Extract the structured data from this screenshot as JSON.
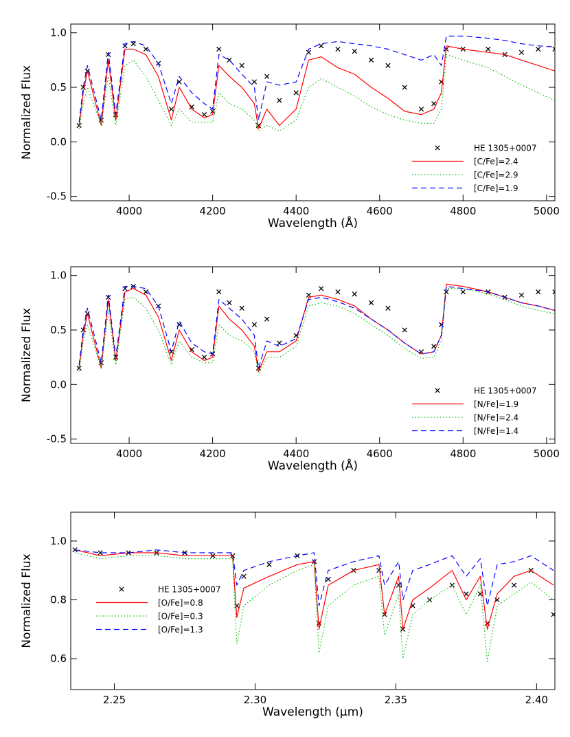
{
  "chart_data": [
    {
      "type": "line",
      "ylabel": "Normalized Flux",
      "xlabel": "Wavelength (Å)",
      "legend": "lower right",
      "xlim": [
        3860,
        5020
      ],
      "xticks": [
        4000,
        4200,
        4400,
        4600,
        4800,
        5000
      ],
      "ylim": [
        -0.54,
        1.08
      ],
      "yticks": [
        -0.5,
        {
          "value": 0,
          "label": "0.0"
        },
        0.5,
        {
          "value": 1,
          "label": "1.0"
        }
      ],
      "x": [
        3880,
        3890,
        3900,
        3933,
        3950,
        3968,
        3990,
        4010,
        4040,
        4070,
        4101,
        4120,
        4150,
        4180,
        4200,
        4215,
        4240,
        4270,
        4300,
        4310,
        4330,
        4360,
        4400,
        4430,
        4460,
        4500,
        4540,
        4580,
        4620,
        4660,
        4700,
        4730,
        4748,
        4760,
        4800,
        4860,
        4900,
        4940,
        4980,
        5020
      ],
      "series": [
        {
          "name": "HE 1305+0007",
          "color": "#000000",
          "marker": "x",
          "values": [
            0.15,
            0.5,
            0.65,
            0.2,
            0.8,
            0.25,
            0.88,
            0.9,
            0.85,
            0.72,
            0.3,
            0.55,
            0.32,
            0.25,
            0.28,
            0.85,
            0.75,
            0.7,
            0.55,
            0.15,
            0.6,
            0.38,
            0.45,
            0.82,
            0.88,
            0.85,
            0.83,
            0.75,
            0.7,
            0.5,
            0.3,
            0.35,
            0.55,
            0.85,
            0.85,
            0.85,
            0.8,
            0.82,
            0.85,
            0.85
          ]
        },
        {
          "name": "[C/Fe]=2.4",
          "color": "#ff0000",
          "linestyle": "solid",
          "values": [
            0.15,
            0.45,
            0.65,
            0.15,
            0.75,
            0.2,
            0.85,
            0.85,
            0.8,
            0.6,
            0.2,
            0.5,
            0.3,
            0.22,
            0.25,
            0.7,
            0.6,
            0.5,
            0.35,
            0.12,
            0.3,
            0.15,
            0.3,
            0.75,
            0.78,
            0.68,
            0.62,
            0.5,
            0.4,
            0.28,
            0.25,
            0.3,
            0.45,
            0.88,
            0.85,
            0.82,
            0.8,
            0.75,
            0.7,
            0.65
          ]
        },
        {
          "name": "[C/Fe]=2.9",
          "color": "#00bb00",
          "linestyle": "dotted",
          "values": [
            0.12,
            0.35,
            0.5,
            0.15,
            0.6,
            0.15,
            0.7,
            0.75,
            0.6,
            0.38,
            0.15,
            0.3,
            0.18,
            0.18,
            0.18,
            0.45,
            0.35,
            0.3,
            0.2,
            0.1,
            0.15,
            0.1,
            0.2,
            0.5,
            0.58,
            0.5,
            0.42,
            0.32,
            0.25,
            0.2,
            0.17,
            0.17,
            0.3,
            0.8,
            0.75,
            0.68,
            0.6,
            0.52,
            0.45,
            0.38
          ]
        },
        {
          "name": "[C/Fe]=1.9",
          "color": "#0000ff",
          "linestyle": "dashed",
          "values": [
            0.18,
            0.5,
            0.7,
            0.2,
            0.82,
            0.25,
            0.9,
            0.92,
            0.88,
            0.72,
            0.35,
            0.6,
            0.45,
            0.35,
            0.3,
            0.8,
            0.75,
            0.62,
            0.5,
            0.2,
            0.55,
            0.52,
            0.55,
            0.85,
            0.9,
            0.92,
            0.9,
            0.88,
            0.85,
            0.8,
            0.75,
            0.8,
            0.7,
            0.97,
            0.97,
            0.95,
            0.93,
            0.9,
            0.88,
            0.87
          ]
        }
      ]
    },
    {
      "type": "line",
      "ylabel": "Normalized Flux",
      "xlabel": "Wavelength (Å)",
      "legend": "lower right",
      "xlim": [
        3860,
        5020
      ],
      "xticks": [
        4000,
        4200,
        4400,
        4600,
        4800,
        5000
      ],
      "ylim": [
        -0.54,
        1.08
      ],
      "yticks": [
        -0.5,
        {
          "value": 0,
          "label": "0.0"
        },
        0.5,
        {
          "value": 1,
          "label": "1.0"
        }
      ],
      "x": [
        3880,
        3890,
        3900,
        3933,
        3950,
        3968,
        3990,
        4010,
        4040,
        4070,
        4101,
        4120,
        4150,
        4180,
        4200,
        4215,
        4240,
        4270,
        4300,
        4310,
        4330,
        4360,
        4400,
        4430,
        4460,
        4500,
        4540,
        4580,
        4620,
        4660,
        4700,
        4730,
        4748,
        4760,
        4800,
        4860,
        4900,
        4940,
        4980,
        5020
      ],
      "series": [
        {
          "name": "HE 1305+0007",
          "color": "#000000",
          "marker": "x",
          "values": [
            0.15,
            0.5,
            0.65,
            0.2,
            0.8,
            0.25,
            0.88,
            0.9,
            0.85,
            0.72,
            0.3,
            0.55,
            0.32,
            0.25,
            0.28,
            0.85,
            0.75,
            0.7,
            0.55,
            0.15,
            0.6,
            0.38,
            0.45,
            0.82,
            0.88,
            0.85,
            0.83,
            0.75,
            0.7,
            0.5,
            0.3,
            0.35,
            0.55,
            0.85,
            0.85,
            0.85,
            0.8,
            0.82,
            0.85,
            0.85
          ]
        },
        {
          "name": "[N/Fe]=1.9",
          "color": "#ff0000",
          "linestyle": "solid",
          "values": [
            0.15,
            0.45,
            0.65,
            0.15,
            0.78,
            0.22,
            0.85,
            0.88,
            0.82,
            0.62,
            0.22,
            0.5,
            0.3,
            0.22,
            0.25,
            0.72,
            0.6,
            0.5,
            0.35,
            0.12,
            0.3,
            0.3,
            0.4,
            0.8,
            0.82,
            0.78,
            0.72,
            0.6,
            0.5,
            0.38,
            0.28,
            0.3,
            0.45,
            0.92,
            0.9,
            0.85,
            0.8,
            0.75,
            0.72,
            0.68
          ]
        },
        {
          "name": "[N/Fe]=2.4",
          "color": "#00bb00",
          "linestyle": "dotted",
          "values": [
            0.12,
            0.4,
            0.55,
            0.15,
            0.68,
            0.18,
            0.78,
            0.8,
            0.7,
            0.5,
            0.18,
            0.4,
            0.25,
            0.2,
            0.2,
            0.55,
            0.45,
            0.4,
            0.3,
            0.1,
            0.25,
            0.25,
            0.35,
            0.72,
            0.75,
            0.72,
            0.65,
            0.55,
            0.45,
            0.33,
            0.24,
            0.25,
            0.4,
            0.88,
            0.88,
            0.83,
            0.78,
            0.72,
            0.68,
            0.65
          ]
        },
        {
          "name": "[N/Fe]=1.4",
          "color": "#0000ff",
          "linestyle": "dashed",
          "values": [
            0.18,
            0.5,
            0.7,
            0.2,
            0.82,
            0.25,
            0.9,
            0.9,
            0.88,
            0.72,
            0.3,
            0.58,
            0.38,
            0.3,
            0.28,
            0.78,
            0.7,
            0.6,
            0.45,
            0.15,
            0.4,
            0.35,
            0.42,
            0.78,
            0.8,
            0.76,
            0.7,
            0.6,
            0.5,
            0.38,
            0.28,
            0.3,
            0.45,
            0.9,
            0.88,
            0.85,
            0.8,
            0.75,
            0.72,
            0.68
          ]
        }
      ]
    },
    {
      "type": "line",
      "ylabel": "Normalized Flux",
      "xlabel": "Wavelength (μm)",
      "legend": "lower left",
      "xlim": [
        2.2345,
        2.4065
      ],
      "xticks": [
        2.25,
        {
          "value": 2.3,
          "label": "2.30"
        },
        2.35,
        {
          "value": 2.4,
          "label": "2.40"
        }
      ],
      "ylim": [
        0.495,
        1.098
      ],
      "yticks": [
        0.6,
        0.8,
        {
          "value": 1,
          "label": "1.0"
        }
      ],
      "x": [
        2.236,
        2.245,
        2.255,
        2.265,
        2.275,
        2.285,
        2.292,
        2.2935,
        2.296,
        2.305,
        2.315,
        2.321,
        2.3227,
        2.326,
        2.335,
        2.344,
        2.346,
        2.351,
        2.3525,
        2.356,
        2.362,
        2.37,
        2.375,
        2.38,
        2.3825,
        2.386,
        2.392,
        2.398,
        2.406
      ],
      "series": [
        {
          "name": "HE 1305+0007",
          "color": "#000000",
          "marker": "x",
          "values": [
            0.97,
            0.96,
            0.96,
            0.96,
            0.96,
            0.95,
            0.95,
            0.78,
            0.88,
            0.92,
            0.95,
            0.93,
            0.72,
            0.87,
            0.9,
            0.9,
            0.75,
            0.85,
            0.7,
            0.78,
            0.8,
            0.85,
            0.82,
            0.82,
            0.72,
            0.8,
            0.85,
            0.9,
            0.75
          ]
        },
        {
          "name": "[O/Fe]=0.8",
          "color": "#ff0000",
          "linestyle": "solid",
          "values": [
            0.97,
            0.95,
            0.96,
            0.96,
            0.95,
            0.95,
            0.95,
            0.74,
            0.84,
            0.88,
            0.92,
            0.93,
            0.7,
            0.85,
            0.9,
            0.92,
            0.75,
            0.88,
            0.7,
            0.8,
            0.84,
            0.9,
            0.8,
            0.88,
            0.7,
            0.82,
            0.88,
            0.9,
            0.85
          ]
        },
        {
          "name": "[O/Fe]=0.3",
          "color": "#00bb00",
          "linestyle": "dotted",
          "values": [
            0.96,
            0.94,
            0.95,
            0.95,
            0.94,
            0.94,
            0.94,
            0.65,
            0.78,
            0.85,
            0.9,
            0.92,
            0.62,
            0.78,
            0.85,
            0.88,
            0.68,
            0.82,
            0.6,
            0.75,
            0.8,
            0.85,
            0.75,
            0.85,
            0.59,
            0.78,
            0.82,
            0.86,
            0.8
          ]
        },
        {
          "name": "[O/Fe]=1.3",
          "color": "#0000ff",
          "linestyle": "dashed",
          "values": [
            0.97,
            0.96,
            0.96,
            0.97,
            0.96,
            0.96,
            0.96,
            0.85,
            0.9,
            0.93,
            0.95,
            0.96,
            0.78,
            0.9,
            0.93,
            0.95,
            0.85,
            0.93,
            0.8,
            0.9,
            0.92,
            0.95,
            0.88,
            0.94,
            0.78,
            0.92,
            0.93,
            0.95,
            0.9
          ]
        }
      ]
    }
  ]
}
